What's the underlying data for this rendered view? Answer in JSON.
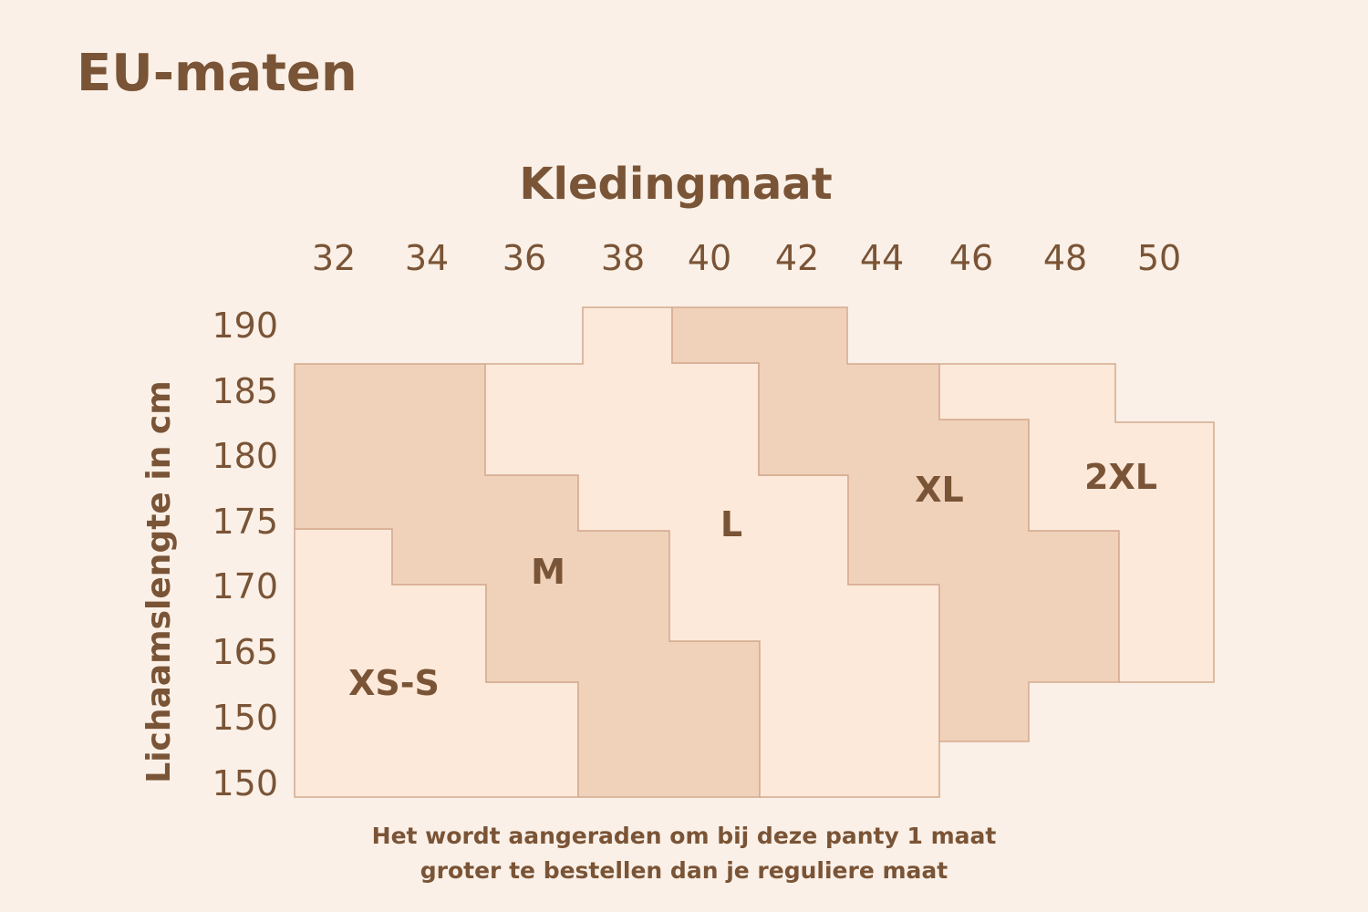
{
  "page": {
    "title": "EU-maten",
    "footnote_line1": "Het wordt aangeraden om bij deze panty 1 maat",
    "footnote_line2": "groter te bestellen dan je reguliere maat"
  },
  "colors": {
    "background": "#faf0e7",
    "text": "#7a5436",
    "region_light": "#fce9da",
    "region_dark": "#f0d2bb",
    "border": "#d4aa8e"
  },
  "chart_data": {
    "type": "region-map",
    "title": "",
    "xlabel": "Kledingmaat",
    "ylabel": "Lichaamslengte in cm",
    "x_ticks": [
      "32",
      "34",
      "36",
      "38",
      "40",
      "42",
      "44",
      "46",
      "48",
      "50"
    ],
    "y_ticks": [
      "190",
      "185",
      "180",
      "175",
      "170",
      "165",
      "150",
      "150"
    ],
    "regions": [
      {
        "label": "XS-S",
        "shade": "light"
      },
      {
        "label": "M",
        "shade": "dark"
      },
      {
        "label": "L",
        "shade": "light"
      },
      {
        "label": "XL",
        "shade": "dark"
      },
      {
        "label": "2XL",
        "shade": "light"
      }
    ]
  }
}
